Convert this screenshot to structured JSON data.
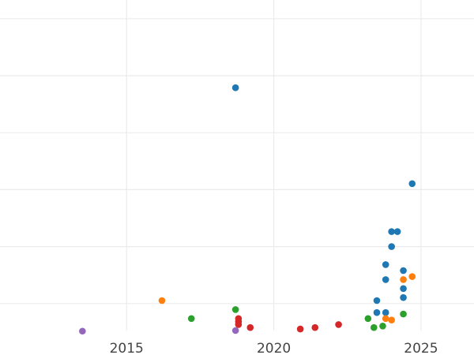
{
  "chart_data": {
    "type": "scatter",
    "title": "",
    "xlabel": "",
    "ylabel": "",
    "xlim": [
      2010.7,
      2026.8
    ],
    "ylim": [
      0,
      1
    ],
    "grid": true,
    "x_ticks": [
      2015,
      2020,
      2025
    ],
    "x_tick_labels": [
      "2015",
      "2020",
      "2025"
    ],
    "y_grid_values": [
      0.09,
      0.28,
      0.47,
      0.66,
      0.85,
      1.04
    ],
    "series": [
      {
        "color": "#1f77b4",
        "points": [
          {
            "x": 2018.7,
            "y": 0.81
          },
          {
            "x": 2024.7,
            "y": 0.49
          },
          {
            "x": 2024.0,
            "y": 0.33
          },
          {
            "x": 2024.2,
            "y": 0.33
          },
          {
            "x": 2024.0,
            "y": 0.28
          },
          {
            "x": 2024.4,
            "y": 0.2
          },
          {
            "x": 2023.8,
            "y": 0.22
          },
          {
            "x": 2023.8,
            "y": 0.17
          },
          {
            "x": 2024.4,
            "y": 0.14
          },
          {
            "x": 2024.4,
            "y": 0.11
          },
          {
            "x": 2023.5,
            "y": 0.1
          },
          {
            "x": 2023.5,
            "y": 0.06
          },
          {
            "x": 2023.8,
            "y": 0.06
          }
        ]
      },
      {
        "color": "#ff7f0e",
        "points": [
          {
            "x": 2016.2,
            "y": 0.1
          },
          {
            "x": 2024.4,
            "y": 0.17
          },
          {
            "x": 2024.7,
            "y": 0.18
          },
          {
            "x": 2023.8,
            "y": 0.04
          },
          {
            "x": 2024.0,
            "y": 0.035
          }
        ]
      },
      {
        "color": "#2ca02c",
        "points": [
          {
            "x": 2018.7,
            "y": 0.07
          },
          {
            "x": 2017.2,
            "y": 0.04
          },
          {
            "x": 2023.2,
            "y": 0.04
          },
          {
            "x": 2023.4,
            "y": 0.01
          },
          {
            "x": 2023.7,
            "y": 0.015
          },
          {
            "x": 2024.4,
            "y": 0.055
          }
        ]
      },
      {
        "color": "#d62728",
        "points": [
          {
            "x": 2018.8,
            "y": 0.04
          },
          {
            "x": 2018.8,
            "y": 0.03
          },
          {
            "x": 2018.8,
            "y": 0.02
          },
          {
            "x": 2019.2,
            "y": 0.01
          },
          {
            "x": 2020.9,
            "y": 0.005
          },
          {
            "x": 2021.4,
            "y": 0.01
          },
          {
            "x": 2022.2,
            "y": 0.02
          }
        ]
      },
      {
        "color": "#9467bd",
        "points": [
          {
            "x": 2013.5,
            "y": -0.002
          },
          {
            "x": 2018.7,
            "y": 0.0
          }
        ]
      }
    ]
  }
}
